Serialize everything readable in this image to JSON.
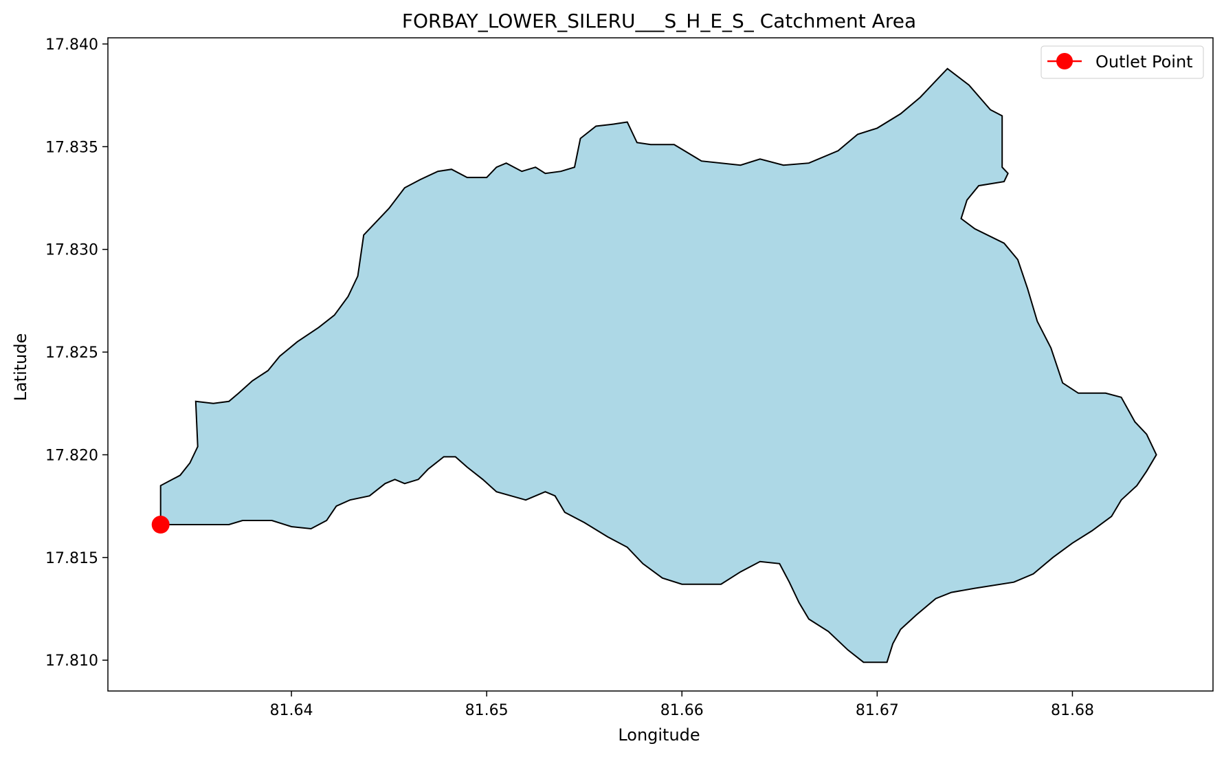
{
  "chart_data": {
    "type": "area",
    "title": "FORBAY_LOWER_SILERU___S_H_E_S_ Catchment Area",
    "xlabel": "Longitude",
    "ylabel": "Latitude",
    "xlim": [
      81.6306,
      81.6872
    ],
    "ylim": [
      17.8085,
      17.8403
    ],
    "xticks": [
      81.64,
      81.65,
      81.66,
      81.67,
      81.68
    ],
    "xtick_labels": [
      "81.64",
      "81.65",
      "81.66",
      "81.67",
      "81.68"
    ],
    "yticks": [
      17.81,
      17.815,
      17.82,
      17.825,
      17.83,
      17.835,
      17.84
    ],
    "ytick_labels": [
      "17.810",
      "17.815",
      "17.820",
      "17.825",
      "17.830",
      "17.835",
      "17.840"
    ],
    "grid": false,
    "legend": {
      "placement": "top-right",
      "entries": [
        "Outlet Point"
      ]
    },
    "series": [
      {
        "kind": "polygon",
        "fill": "#add8e6",
        "edge": "#000000",
        "points": [
          [
            81.6333,
            17.8166
          ],
          [
            81.6333,
            17.8185
          ],
          [
            81.6343,
            17.819
          ],
          [
            81.6348,
            17.8196
          ],
          [
            81.6352,
            17.8204
          ],
          [
            81.6351,
            17.8226
          ],
          [
            81.636,
            17.8225
          ],
          [
            81.6368,
            17.8226
          ],
          [
            81.6373,
            17.823
          ],
          [
            81.638,
            17.8236
          ],
          [
            81.6388,
            17.8241
          ],
          [
            81.6394,
            17.8248
          ],
          [
            81.6403,
            17.8255
          ],
          [
            81.6414,
            17.8262
          ],
          [
            81.6422,
            17.8268
          ],
          [
            81.6429,
            17.8277
          ],
          [
            81.6434,
            17.8287
          ],
          [
            81.6437,
            17.8307
          ],
          [
            81.6443,
            17.8313
          ],
          [
            81.645,
            17.832
          ],
          [
            81.6458,
            17.833
          ],
          [
            81.6466,
            17.8334
          ],
          [
            81.6475,
            17.8338
          ],
          [
            81.6482,
            17.8339
          ],
          [
            81.649,
            17.8335
          ],
          [
            81.65,
            17.8335
          ],
          [
            81.6505,
            17.834
          ],
          [
            81.651,
            17.8342
          ],
          [
            81.6518,
            17.8338
          ],
          [
            81.6525,
            17.834
          ],
          [
            81.653,
            17.8337
          ],
          [
            81.6538,
            17.8338
          ],
          [
            81.6545,
            17.834
          ],
          [
            81.6548,
            17.8354
          ],
          [
            81.6556,
            17.836
          ],
          [
            81.6565,
            17.8361
          ],
          [
            81.6572,
            17.8362
          ],
          [
            81.6577,
            17.8352
          ],
          [
            81.6584,
            17.8351
          ],
          [
            81.6596,
            17.8351
          ],
          [
            81.661,
            17.8343
          ],
          [
            81.663,
            17.8341
          ],
          [
            81.664,
            17.8344
          ],
          [
            81.6652,
            17.8341
          ],
          [
            81.6665,
            17.8342
          ],
          [
            81.668,
            17.8348
          ],
          [
            81.669,
            17.8356
          ],
          [
            81.67,
            17.8359
          ],
          [
            81.6712,
            17.8366
          ],
          [
            81.6722,
            17.8374
          ],
          [
            81.6731,
            17.8383
          ],
          [
            81.6736,
            17.8388
          ],
          [
            81.6747,
            17.838
          ],
          [
            81.6758,
            17.8368
          ],
          [
            81.6764,
            17.8365
          ],
          [
            81.6764,
            17.834
          ],
          [
            81.6767,
            17.8337
          ],
          [
            81.6765,
            17.8333
          ],
          [
            81.6752,
            17.8331
          ],
          [
            81.6746,
            17.8324
          ],
          [
            81.6743,
            17.8315
          ],
          [
            81.675,
            17.831
          ],
          [
            81.6765,
            17.8303
          ],
          [
            81.6772,
            17.8295
          ],
          [
            81.6777,
            17.8281
          ],
          [
            81.6782,
            17.8265
          ],
          [
            81.6789,
            17.8252
          ],
          [
            81.6795,
            17.8235
          ],
          [
            81.6803,
            17.823
          ],
          [
            81.6817,
            17.823
          ],
          [
            81.6825,
            17.8228
          ],
          [
            81.6832,
            17.8216
          ],
          [
            81.6838,
            17.821
          ],
          [
            81.6843,
            17.82
          ],
          [
            81.6838,
            17.8192
          ],
          [
            81.6833,
            17.8185
          ],
          [
            81.6825,
            17.8178
          ],
          [
            81.682,
            17.817
          ],
          [
            81.681,
            17.8163
          ],
          [
            81.68,
            17.8157
          ],
          [
            81.679,
            17.815
          ],
          [
            81.678,
            17.8142
          ],
          [
            81.677,
            17.8138
          ],
          [
            81.675,
            17.8135
          ],
          [
            81.6738,
            17.8133
          ],
          [
            81.673,
            17.813
          ],
          [
            81.672,
            17.8122
          ],
          [
            81.6712,
            17.8115
          ],
          [
            81.6708,
            17.8108
          ],
          [
            81.6705,
            17.8099
          ],
          [
            81.6693,
            17.8099
          ],
          [
            81.6685,
            17.8105
          ],
          [
            81.6675,
            17.8114
          ],
          [
            81.6665,
            17.812
          ],
          [
            81.666,
            17.8128
          ],
          [
            81.6655,
            17.8138
          ],
          [
            81.665,
            17.8147
          ],
          [
            81.664,
            17.8148
          ],
          [
            81.663,
            17.8143
          ],
          [
            81.662,
            17.8137
          ],
          [
            81.66,
            17.8137
          ],
          [
            81.659,
            17.814
          ],
          [
            81.658,
            17.8147
          ],
          [
            81.6572,
            17.8155
          ],
          [
            81.6562,
            17.816
          ],
          [
            81.655,
            17.8167
          ],
          [
            81.654,
            17.8172
          ],
          [
            81.6535,
            17.818
          ],
          [
            81.653,
            17.8182
          ],
          [
            81.652,
            17.8178
          ],
          [
            81.6505,
            17.8182
          ],
          [
            81.6498,
            17.8188
          ],
          [
            81.649,
            17.8194
          ],
          [
            81.6484,
            17.8199
          ],
          [
            81.6478,
            17.8199
          ],
          [
            81.647,
            17.8193
          ],
          [
            81.6465,
            17.8188
          ],
          [
            81.6458,
            17.8186
          ],
          [
            81.6453,
            17.8188
          ],
          [
            81.6448,
            17.8186
          ],
          [
            81.644,
            17.818
          ],
          [
            81.643,
            17.8178
          ],
          [
            81.6423,
            17.8175
          ],
          [
            81.6418,
            17.8168
          ],
          [
            81.641,
            17.8164
          ],
          [
            81.64,
            17.8165
          ],
          [
            81.639,
            17.8168
          ],
          [
            81.6375,
            17.8168
          ],
          [
            81.6368,
            17.8166
          ],
          [
            81.6355,
            17.8166
          ],
          [
            81.6333,
            17.8166
          ]
        ]
      }
    ],
    "outlet_point": {
      "name": "Outlet Point",
      "x": 81.6333,
      "y": 17.8166,
      "color": "#ff0000"
    }
  }
}
